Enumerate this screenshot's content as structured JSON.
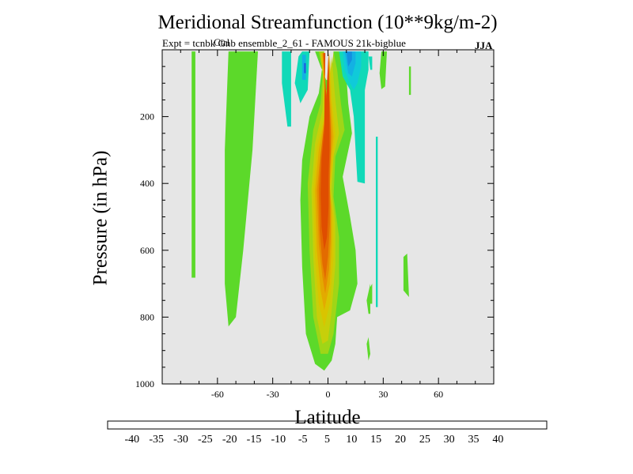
{
  "chart_data": {
    "type": "heatmap",
    "title": "Meridional Streamfunction (10**9kg/m-2)",
    "subtitle": "Expt = tcnbk Gnb ensemble_2_61 - FAMOUS 21k-bigblue",
    "subtitle_overlap": "Ctrl",
    "season": "JJA",
    "xlabel": "Latitude",
    "ylabel": "Pressure (in hPa)",
    "xlim": [
      -90,
      90
    ],
    "ylim": [
      0,
      1000
    ],
    "x_ticks": [
      {
        "value": -60,
        "label": "-60"
      },
      {
        "value": -30,
        "label": "-30"
      },
      {
        "value": 0,
        "label": "0"
      },
      {
        "value": 30,
        "label": "30"
      },
      {
        "value": 60,
        "label": "60"
      }
    ],
    "y_ticks": [
      {
        "value": 200,
        "label": "200"
      },
      {
        "value": 400,
        "label": "400"
      },
      {
        "value": 600,
        "label": "600"
      },
      {
        "value": 800,
        "label": "800"
      },
      {
        "value": 1000,
        "label": "1000"
      }
    ],
    "background_color": "#e6e6e6",
    "colorbar": {
      "colors": [
        "#7d00d9",
        "#4a10c7",
        "#2a2ad8",
        "#1d60e0",
        "#138fe0",
        "#13b1e3",
        "#10cad9",
        "#10d9b8",
        "#e6e6e6",
        "#5cd92a",
        "#9fd617",
        "#c7cf0a",
        "#d9c400",
        "#e3aa00",
        "#e68c00",
        "#e36b00",
        "#df4d00",
        "#d92600"
      ],
      "labels": [
        "-40",
        "-35",
        "-30",
        "-25",
        "-20",
        "-15",
        "-10",
        "-5",
        "5",
        "10",
        "15",
        "20",
        "25",
        "30",
        "35",
        "40"
      ]
    },
    "regions": [
      {
        "name": "left-thin-positive-strip",
        "level": 5,
        "polygon": [
          [
            -74,
            5
          ],
          [
            -72,
            5
          ],
          [
            -72,
            682
          ],
          [
            -74,
            682
          ]
        ]
      },
      {
        "name": "sh-broad-positive-band",
        "level": 5,
        "polygon": [
          [
            -54,
            5
          ],
          [
            -38,
            5
          ],
          [
            -41,
            300
          ],
          [
            -46,
            600
          ],
          [
            -50,
            800
          ],
          [
            -54,
            828
          ],
          [
            -56,
            700
          ],
          [
            -56,
            300
          ]
        ]
      },
      {
        "name": "central-positive-cell-outer",
        "level": 5,
        "polygon": [
          [
            -7,
            5
          ],
          [
            -2,
            5
          ],
          [
            -5,
            130
          ],
          [
            -10,
            200
          ],
          [
            -14,
            330
          ],
          [
            -15,
            450
          ],
          [
            -14,
            650
          ],
          [
            -12,
            850
          ],
          [
            -7,
            940
          ],
          [
            -2,
            960
          ],
          [
            2,
            930
          ],
          [
            4,
            880
          ],
          [
            5,
            800
          ],
          [
            12,
            780
          ],
          [
            16,
            700
          ],
          [
            15,
            600
          ],
          [
            12,
            500
          ],
          [
            8,
            380
          ],
          [
            13,
            250
          ],
          [
            11,
            160
          ],
          [
            10,
            80
          ],
          [
            6,
            5
          ],
          [
            3,
            5
          ],
          [
            3,
            70
          ],
          [
            1,
            90
          ],
          [
            -1,
            90
          ],
          [
            -4,
            50
          ]
        ]
      },
      {
        "name": "central-positive-10",
        "level": 10,
        "polygon": [
          [
            -5,
            5
          ],
          [
            -2,
            5
          ],
          [
            -4,
            160
          ],
          [
            -8,
            240
          ],
          [
            -11,
            400
          ],
          [
            -10,
            600
          ],
          [
            -8,
            800
          ],
          [
            -4,
            910
          ],
          [
            0,
            910
          ],
          [
            3,
            850
          ],
          [
            6,
            700
          ],
          [
            6,
            560
          ],
          [
            3,
            440
          ],
          [
            4,
            320
          ],
          [
            9,
            240
          ],
          [
            7,
            160
          ],
          [
            5,
            60
          ],
          [
            3,
            5
          ],
          [
            1,
            120
          ],
          [
            -1,
            120
          ]
        ]
      },
      {
        "name": "central-positive-15",
        "level": 15,
        "polygon": [
          [
            -4,
            10
          ],
          [
            -2,
            10
          ],
          [
            -3,
            180
          ],
          [
            -7,
            280
          ],
          [
            -9,
            420
          ],
          [
            -8,
            620
          ],
          [
            -6,
            800
          ],
          [
            -3,
            880
          ],
          [
            0,
            870
          ],
          [
            2,
            780
          ],
          [
            4,
            640
          ],
          [
            4,
            520
          ],
          [
            2,
            420
          ],
          [
            3,
            320
          ],
          [
            6,
            250
          ],
          [
            4,
            150
          ],
          [
            2,
            20
          ],
          [
            0,
            160
          ],
          [
            -1,
            160
          ]
        ]
      },
      {
        "name": "central-positive-20",
        "level": 20,
        "polygon": [
          [
            -4,
            10
          ],
          [
            -2,
            10
          ],
          [
            -2,
            200
          ],
          [
            -6,
            290
          ],
          [
            -8,
            420
          ],
          [
            -7,
            620
          ],
          [
            -5,
            760
          ],
          [
            -2,
            830
          ],
          [
            1,
            760
          ],
          [
            3,
            620
          ],
          [
            3,
            500
          ],
          [
            1,
            420
          ],
          [
            3,
            320
          ],
          [
            4,
            250
          ],
          [
            2,
            140
          ],
          [
            1,
            10
          ],
          [
            0,
            170
          ],
          [
            -1,
            170
          ]
        ]
      },
      {
        "name": "central-positive-25",
        "level": 25,
        "polygon": [
          [
            -3,
            10
          ],
          [
            -1.5,
            10
          ],
          [
            -2,
            210
          ],
          [
            -5,
            300
          ],
          [
            -7,
            420
          ],
          [
            -6,
            600
          ],
          [
            -4,
            720
          ],
          [
            -2,
            780
          ],
          [
            1,
            700
          ],
          [
            2,
            580
          ],
          [
            2,
            480
          ],
          [
            1,
            410
          ],
          [
            2,
            320
          ],
          [
            3,
            260
          ],
          [
            1.5,
            150
          ],
          [
            0.5,
            10
          ],
          [
            0,
            180
          ],
          [
            -1,
            180
          ]
        ]
      },
      {
        "name": "central-positive-30",
        "level": 30,
        "polygon": [
          [
            -3,
            10
          ],
          [
            -1.5,
            10
          ],
          [
            -2,
            220
          ],
          [
            -4,
            310
          ],
          [
            -6,
            420
          ],
          [
            -5,
            580
          ],
          [
            -3,
            680
          ],
          [
            -1.5,
            730
          ],
          [
            0.5,
            660
          ],
          [
            1.5,
            560
          ],
          [
            1.5,
            470
          ],
          [
            1,
            400
          ],
          [
            1.5,
            320
          ],
          [
            2,
            260
          ],
          [
            1,
            150
          ],
          [
            0.3,
            10
          ],
          [
            0,
            190
          ],
          [
            -1,
            190
          ]
        ]
      },
      {
        "name": "central-positive-35",
        "level": 35,
        "polygon": [
          [
            -2.6,
            10
          ],
          [
            -1.5,
            10
          ],
          [
            -2,
            220
          ],
          [
            -4,
            320
          ],
          [
            -5,
            420
          ],
          [
            -4.5,
            540
          ],
          [
            -3,
            640
          ],
          [
            -1.5,
            690
          ],
          [
            0,
            620
          ],
          [
            1,
            520
          ],
          [
            1,
            440
          ],
          [
            1,
            360
          ],
          [
            1.5,
            300
          ],
          [
            1.5,
            240
          ],
          [
            0.8,
            150
          ],
          [
            0.3,
            10
          ],
          [
            -0.5,
            160
          ]
        ]
      },
      {
        "name": "central-positive-40",
        "level": 40,
        "polygon": [
          [
            -2.4,
            10
          ],
          [
            -1.4,
            10
          ],
          [
            -2,
            240
          ],
          [
            -3.5,
            330
          ],
          [
            -4,
            430
          ],
          [
            -3.5,
            530
          ],
          [
            -2,
            600
          ],
          [
            -0.5,
            560
          ],
          [
            0.3,
            470
          ],
          [
            0.3,
            380
          ],
          [
            0.8,
            300
          ],
          [
            0.8,
            220
          ],
          [
            0.3,
            10
          ],
          [
            -1,
            150
          ]
        ]
      },
      {
        "name": "nh-positive-streak-a",
        "level": 5,
        "polygon": [
          [
            18,
            35
          ],
          [
            20,
            35
          ],
          [
            20,
            120
          ],
          [
            19,
            95
          ],
          [
            18,
            95
          ]
        ]
      },
      {
        "name": "nh-positive-streak-b",
        "level": 5,
        "polygon": [
          [
            29,
            5
          ],
          [
            32,
            5
          ],
          [
            31,
            110
          ],
          [
            29,
            118
          ],
          [
            28,
            70
          ]
        ]
      },
      {
        "name": "nh-positive-streak-c",
        "level": 5,
        "polygon": [
          [
            44,
            50
          ],
          [
            45,
            50
          ],
          [
            45,
            135
          ],
          [
            44,
            135
          ]
        ]
      },
      {
        "name": "nh-positive-blob-a",
        "level": 5,
        "polygon": [
          [
            21,
            750
          ],
          [
            23,
            700
          ],
          [
            23,
            790
          ],
          [
            22,
            790
          ]
        ]
      },
      {
        "name": "nh-positive-blob-b",
        "level": 5,
        "polygon": [
          [
            21,
            880
          ],
          [
            22,
            860
          ],
          [
            23,
            910
          ],
          [
            22,
            930
          ]
        ]
      },
      {
        "name": "nh-positive-blob-c",
        "level": 5,
        "polygon": [
          [
            41,
            620
          ],
          [
            43,
            610
          ],
          [
            44,
            740
          ],
          [
            41,
            720
          ]
        ]
      },
      {
        "name": "nh-positive-blob-d",
        "level": 5,
        "polygon": [
          [
            23,
            710
          ],
          [
            24,
            700
          ],
          [
            24,
            760
          ],
          [
            23,
            760
          ]
        ]
      },
      {
        "name": "negative-cell-left-outer",
        "level": -5,
        "polygon": [
          [
            -25,
            5
          ],
          [
            -20,
            5
          ],
          [
            -20,
            230
          ],
          [
            -22,
            230
          ],
          [
            -25,
            100
          ]
        ]
      },
      {
        "name": "negative-cell-left-inner",
        "level": -5,
        "polygon": [
          [
            -16,
            20
          ],
          [
            -14,
            5
          ],
          [
            -10,
            5
          ],
          [
            -11,
            120
          ],
          [
            -15,
            160
          ],
          [
            -18,
            100
          ]
        ]
      },
      {
        "name": "negative-cell-left-core",
        "level": -15,
        "polygon": [
          [
            -14,
            15
          ],
          [
            -12,
            15
          ],
          [
            -12,
            90
          ],
          [
            -14,
            90
          ]
        ]
      },
      {
        "name": "negative-cell-left-darkest",
        "level": -25,
        "polygon": [
          [
            -13,
            40
          ],
          [
            -12,
            40
          ],
          [
            -12,
            70
          ],
          [
            -13,
            70
          ]
        ]
      },
      {
        "name": "negative-cell-right-outer",
        "level": -5,
        "polygon": [
          [
            6,
            5
          ],
          [
            22,
            5
          ],
          [
            22,
            60
          ],
          [
            20,
            120
          ],
          [
            20,
            400
          ],
          [
            16,
            395
          ],
          [
            15,
            300
          ],
          [
            14,
            200
          ],
          [
            12,
            120
          ],
          [
            8,
            80
          ]
        ]
      },
      {
        "name": "negative-cell-right-10",
        "level": -10,
        "polygon": [
          [
            8,
            5
          ],
          [
            18,
            5
          ],
          [
            18,
            50
          ],
          [
            16,
            100
          ],
          [
            14,
            120
          ],
          [
            12,
            100
          ],
          [
            9,
            60
          ]
        ]
      },
      {
        "name": "negative-cell-right-15",
        "level": -15,
        "polygon": [
          [
            9,
            5
          ],
          [
            15,
            5
          ],
          [
            15,
            40
          ],
          [
            13,
            80
          ],
          [
            11,
            70
          ]
        ]
      },
      {
        "name": "negative-cell-right-20",
        "level": -20,
        "polygon": [
          [
            10,
            5
          ],
          [
            13,
            5
          ],
          [
            13,
            30
          ],
          [
            11,
            50
          ]
        ]
      },
      {
        "name": "negative-nh-streak",
        "level": -5,
        "polygon": [
          [
            22,
            20
          ],
          [
            24,
            20
          ],
          [
            24,
            60
          ],
          [
            23,
            60
          ]
        ]
      },
      {
        "name": "negative-nh-lower-streak",
        "level": -5,
        "polygon": [
          [
            26,
            260
          ],
          [
            27,
            260
          ],
          [
            27,
            770
          ],
          [
            26,
            770
          ]
        ]
      }
    ]
  }
}
